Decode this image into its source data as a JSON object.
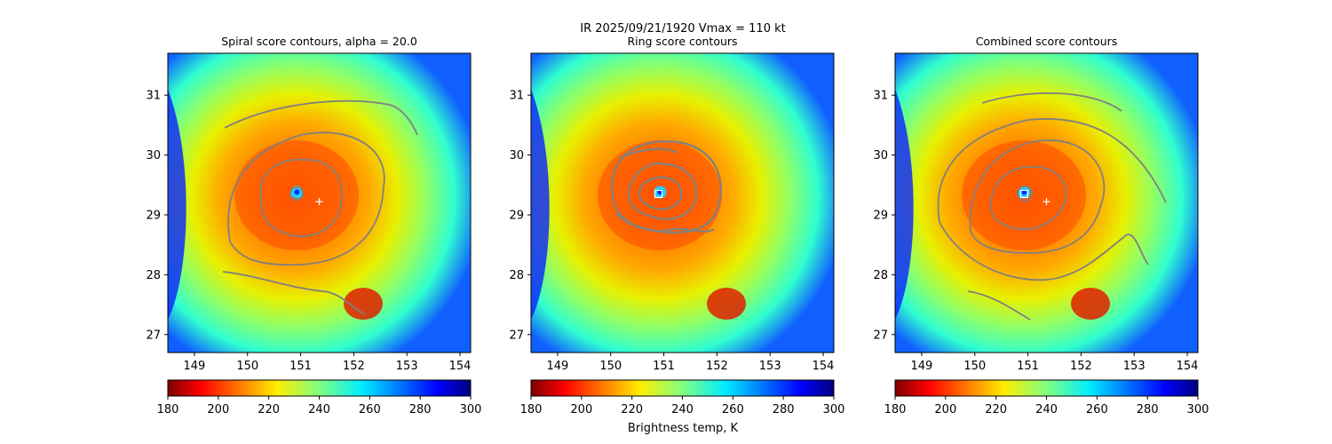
{
  "figure": {
    "suptitle": "IR  2025/09/21/1920    Vmax = 110 kt",
    "colorbar_label": "Brightness temp, K"
  },
  "chart_data": [
    {
      "type": "heatmap",
      "title": "Spiral score contours, alpha = 20.0",
      "x_ticks": [
        "149",
        "150",
        "151",
        "152",
        "153",
        "154"
      ],
      "y_ticks": [
        "27",
        "28",
        "29",
        "30",
        "31"
      ],
      "xlim": [
        148.5,
        154.2
      ],
      "ylim": [
        26.7,
        31.7
      ],
      "colorbar_ticks": [
        "180",
        "200",
        "220",
        "240",
        "260",
        "280",
        "300"
      ],
      "colorbar_range": [
        180,
        300
      ],
      "colormap": "jet_r",
      "markers": [
        {
          "name": "best-track center",
          "symbol": "+",
          "lon": 151.35,
          "lat": 29.22
        }
      ]
    },
    {
      "type": "heatmap",
      "title": "Ring score contours",
      "x_ticks": [
        "149",
        "150",
        "151",
        "152",
        "153",
        "154"
      ],
      "y_ticks": [
        "27",
        "28",
        "29",
        "30",
        "31"
      ],
      "xlim": [
        148.5,
        154.2
      ],
      "ylim": [
        26.7,
        31.7
      ],
      "colorbar_ticks": [
        "180",
        "200",
        "220",
        "240",
        "260",
        "280",
        "300"
      ],
      "colorbar_range": [
        180,
        300
      ],
      "colormap": "jet_r",
      "markers": [
        {
          "name": "ring center",
          "symbol": "square",
          "lon": 150.9,
          "lat": 29.35
        }
      ]
    },
    {
      "type": "heatmap",
      "title": "Combined score contours",
      "x_ticks": [
        "149",
        "150",
        "151",
        "152",
        "153",
        "154"
      ],
      "y_ticks": [
        "27",
        "28",
        "29",
        "30",
        "31"
      ],
      "xlim": [
        148.5,
        154.2
      ],
      "ylim": [
        26.7,
        31.7
      ],
      "colorbar_ticks": [
        "180",
        "200",
        "220",
        "240",
        "260",
        "280",
        "300"
      ],
      "colorbar_range": [
        180,
        300
      ],
      "colormap": "jet_r",
      "markers": [
        {
          "name": "best-track center",
          "symbol": "+",
          "lon": 151.35,
          "lat": 29.22
        },
        {
          "name": "combined center",
          "symbol": "square",
          "lon": 150.93,
          "lat": 29.35
        }
      ]
    }
  ],
  "colors": {
    "contour": "#808080",
    "marker": "#ffffff"
  }
}
